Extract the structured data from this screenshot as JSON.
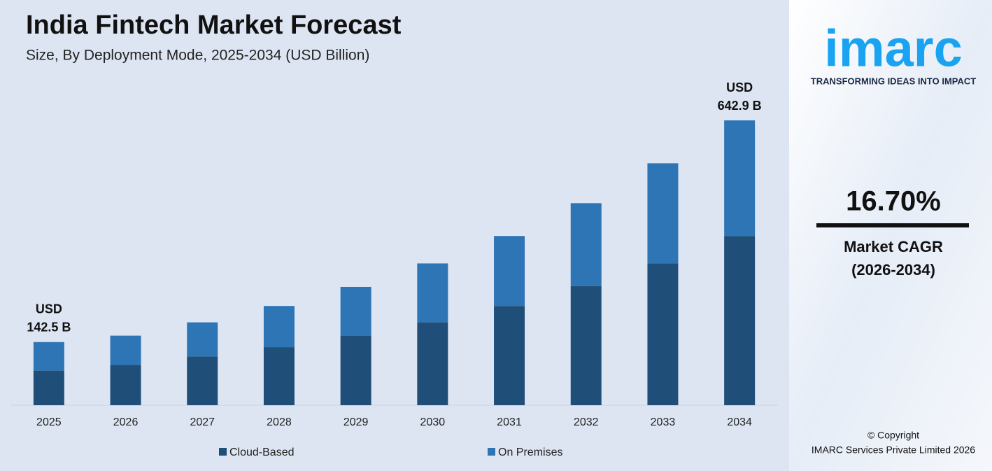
{
  "chart_data": {
    "type": "stacked_bar",
    "title": "India Fintech Market Forecast",
    "subtitle": "Size, By Deployment Mode, 2025-2034 (USD Billion)",
    "categories": [
      "2025",
      "2026",
      "2027",
      "2028",
      "2029",
      "2030",
      "2031",
      "2032",
      "2033",
      "2034"
    ],
    "series": [
      {
        "name": "Cloud-Based",
        "color": "#1f4e79",
        "values": [
          78,
          91,
          110,
          131,
          157,
          187,
          224,
          269,
          320,
          382
        ]
      },
      {
        "name": "On Premises",
        "color": "#2e75b6",
        "values": [
          64.5,
          66,
          77,
          93,
          110,
          133,
          158,
          187,
          226,
          260.9
        ]
      }
    ],
    "total_labels": [
      {
        "index": 0,
        "lines": [
          "USD",
          "142.5 B"
        ]
      },
      {
        "index": 9,
        "lines": [
          "USD",
          "642.9 B"
        ]
      }
    ],
    "legend": "bottom"
  },
  "side_panel": {
    "logo": "imarc",
    "tagline": "TRANSFORMING IDEAS INTO IMPACT",
    "cagr_value": "16.70%",
    "cagr_label": "Market CAGR",
    "cagr_period": "(2026-2034)",
    "copyright": "© Copyright",
    "company": "IMARC Services Private Limited 2026"
  }
}
